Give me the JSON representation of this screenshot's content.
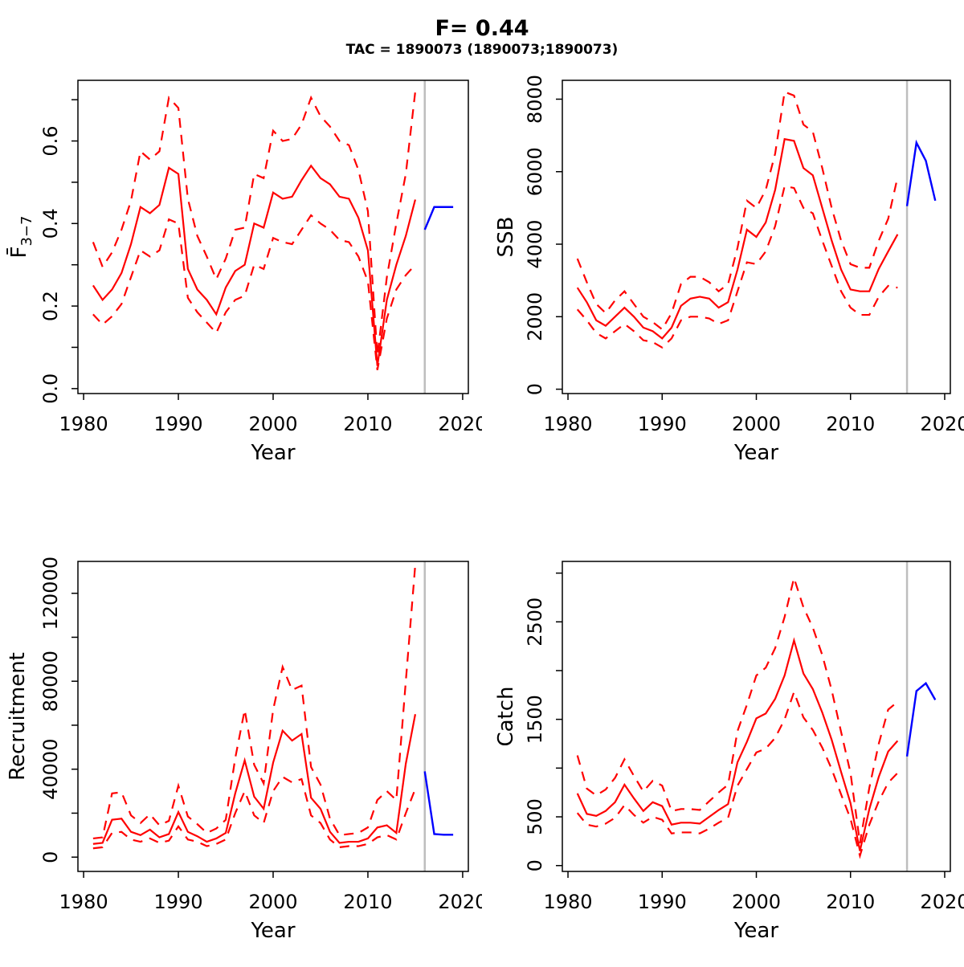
{
  "header": {
    "title": "F= 0.44",
    "subtitle": "TAC = 1890073 (1890073;1890073)"
  },
  "colors": {
    "history": "#FF0000",
    "forecast": "#0000FF",
    "vline": "#BEBEBE",
    "axis": "#000000",
    "background": "#FFFFFF"
  },
  "chart_data": {
    "type": "line",
    "layout": "2x2 grid, R base graphics style, outer box around each panel, y tick labels rotated 90",
    "legend": "none",
    "history_years": [
      1981,
      1982,
      1983,
      1984,
      1985,
      1986,
      1987,
      1988,
      1989,
      1990,
      1991,
      1992,
      1993,
      1994,
      1995,
      1996,
      1997,
      1998,
      1999,
      2000,
      2001,
      2002,
      2003,
      2004,
      2005,
      2006,
      2007,
      2008,
      2009,
      2010,
      2011,
      2012,
      2013,
      2014,
      2015
    ],
    "forecast_years": [
      2016,
      2017,
      2018,
      2019
    ],
    "vline_year": 2016,
    "xlim": [
      1979.4,
      2020.6
    ],
    "xlabel": "Year",
    "x_ticks": [
      {
        "v": 1980,
        "label": "1980"
      },
      {
        "v": 1990,
        "label": "1990"
      },
      {
        "v": 2000,
        "label": "2000"
      },
      {
        "v": 2010,
        "label": "2010"
      },
      {
        "v": 2020,
        "label": "2020"
      }
    ],
    "panels": [
      {
        "key": "fbar",
        "ylabel": "F̄",
        "ylabel_sub": "3−7",
        "ylim": [
          -0.012,
          0.747
        ],
        "y_ticks": [
          {
            "v": 0.0,
            "label": "0.0"
          },
          {
            "v": 0.1,
            "label": ""
          },
          {
            "v": 0.2,
            "label": "0.2"
          },
          {
            "v": 0.3,
            "label": ""
          },
          {
            "v": 0.4,
            "label": "0.4"
          },
          {
            "v": 0.5,
            "label": ""
          },
          {
            "v": 0.6,
            "label": "0.6"
          },
          {
            "v": 0.7,
            "label": ""
          }
        ],
        "median": [
          0.25,
          0.215,
          0.24,
          0.28,
          0.35,
          0.44,
          0.425,
          0.445,
          0.535,
          0.52,
          0.29,
          0.24,
          0.215,
          0.18,
          0.245,
          0.285,
          0.3,
          0.4,
          0.39,
          0.475,
          0.46,
          0.465,
          0.505,
          0.54,
          0.51,
          0.495,
          0.465,
          0.46,
          0.414,
          0.335,
          0.055,
          0.215,
          0.3,
          0.37,
          0.458
        ],
        "upper": [
          0.355,
          0.295,
          0.33,
          0.385,
          0.455,
          0.575,
          0.555,
          0.575,
          0.705,
          0.68,
          0.46,
          0.37,
          0.32,
          0.265,
          0.315,
          0.385,
          0.39,
          0.52,
          0.51,
          0.625,
          0.6,
          0.605,
          0.64,
          0.705,
          0.66,
          0.635,
          0.6,
          0.59,
          0.53,
          0.43,
          0.08,
          0.27,
          0.4,
          0.52,
          0.72
        ],
        "lower": [
          0.18,
          0.155,
          0.175,
          0.205,
          0.27,
          0.335,
          0.32,
          0.335,
          0.41,
          0.4,
          0.22,
          0.185,
          0.16,
          0.135,
          0.185,
          0.215,
          0.225,
          0.3,
          0.29,
          0.365,
          0.355,
          0.35,
          0.385,
          0.42,
          0.4,
          0.385,
          0.36,
          0.355,
          0.32,
          0.26,
          0.045,
          0.17,
          0.24,
          0.275,
          0.3
        ],
        "forecast": [
          0.385,
          0.44,
          0.44,
          0.44
        ]
      },
      {
        "key": "ssb",
        "ylabel": "SSB",
        "ylabel_sub": "",
        "ylim": [
          -120,
          8520
        ],
        "y_ticks": [
          {
            "v": 0,
            "label": "0"
          },
          {
            "v": 2000,
            "label": "2000"
          },
          {
            "v": 4000,
            "label": "4000"
          },
          {
            "v": 6000,
            "label": "6000"
          },
          {
            "v": 8000,
            "label": "8000"
          }
        ],
        "median": [
          2800,
          2400,
          1900,
          1750,
          2000,
          2250,
          2000,
          1700,
          1600,
          1400,
          1700,
          2300,
          2500,
          2550,
          2500,
          2250,
          2400,
          3300,
          4400,
          4200,
          4600,
          5500,
          6900,
          6850,
          6100,
          5900,
          5000,
          4100,
          3300,
          2750,
          2700,
          2700,
          3320,
          3800,
          4270
        ],
        "upper": [
          3600,
          2950,
          2350,
          2100,
          2450,
          2700,
          2350,
          2000,
          1850,
          1650,
          2100,
          2900,
          3100,
          3100,
          2950,
          2700,
          2900,
          3900,
          5200,
          5000,
          5500,
          6500,
          8200,
          8100,
          7300,
          7100,
          6100,
          5000,
          4100,
          3450,
          3350,
          3350,
          4100,
          4700,
          5850
        ],
        "lower": [
          2200,
          1900,
          1550,
          1400,
          1600,
          1800,
          1600,
          1350,
          1300,
          1150,
          1400,
          1900,
          2000,
          2000,
          1950,
          1800,
          1900,
          2700,
          3500,
          3450,
          3800,
          4500,
          5600,
          5550,
          5000,
          4850,
          4100,
          3400,
          2700,
          2250,
          2050,
          2050,
          2550,
          2850,
          2800
        ],
        "forecast": [
          5050,
          6800,
          6300,
          5200
        ]
      },
      {
        "key": "recruitment",
        "ylabel": "Recruitment",
        "ylabel_sub": "",
        "ylim": [
          -6500,
          134500
        ],
        "y_ticks": [
          {
            "v": 0,
            "label": "0"
          },
          {
            "v": 20000,
            "label": ""
          },
          {
            "v": 40000,
            "label": "40000"
          },
          {
            "v": 60000,
            "label": ""
          },
          {
            "v": 80000,
            "label": "80000"
          },
          {
            "v": 100000,
            "label": ""
          },
          {
            "v": 120000,
            "label": "120000"
          }
        ],
        "median": [
          6000,
          6500,
          17000,
          17500,
          11500,
          10000,
          12500,
          9000,
          10500,
          20500,
          11500,
          9500,
          7000,
          8500,
          11000,
          29000,
          44000,
          27500,
          22000,
          43000,
          57500,
          53000,
          56000,
          27000,
          22000,
          11500,
          6500,
          7000,
          7000,
          8500,
          13500,
          14500,
          11000,
          42500,
          65000
        ],
        "upper": [
          8500,
          9000,
          29000,
          29500,
          19000,
          15500,
          19500,
          14500,
          16500,
          32500,
          18500,
          15000,
          11000,
          13000,
          17000,
          45000,
          67000,
          42000,
          33500,
          67000,
          86500,
          76000,
          78000,
          41000,
          33000,
          17500,
          10000,
          10500,
          11000,
          13500,
          26000,
          30000,
          26000,
          80000,
          133000
        ],
        "lower": [
          4000,
          4500,
          11000,
          11500,
          8000,
          7000,
          8500,
          6500,
          7500,
          14000,
          8000,
          7000,
          5000,
          6000,
          8000,
          20000,
          30000,
          19000,
          15500,
          30000,
          36500,
          34000,
          35500,
          19000,
          15500,
          8000,
          4500,
          5000,
          5000,
          6000,
          9000,
          10000,
          8000,
          20000,
          31000
        ],
        "forecast": [
          39000,
          10500,
          10200,
          10200
        ]
      },
      {
        "key": "catch",
        "ylabel": "Catch",
        "ylabel_sub": "",
        "ylim": [
          -60,
          3120
        ],
        "y_ticks": [
          {
            "v": 0,
            "label": "0"
          },
          {
            "v": 500,
            "label": "500"
          },
          {
            "v": 1000,
            "label": ""
          },
          {
            "v": 1500,
            "label": "1500"
          },
          {
            "v": 2000,
            "label": ""
          },
          {
            "v": 2500,
            "label": "2500"
          },
          {
            "v": 3000,
            "label": ""
          }
        ],
        "median": [
          740,
          530,
          510,
          560,
          650,
          830,
          690,
          560,
          650,
          610,
          420,
          440,
          440,
          430,
          500,
          570,
          630,
          1060,
          1270,
          1510,
          1560,
          1710,
          1950,
          2310,
          1970,
          1810,
          1570,
          1290,
          960,
          640,
          150,
          580,
          910,
          1170,
          1280
        ],
        "upper": [
          1130,
          790,
          720,
          780,
          900,
          1090,
          920,
          760,
          870,
          820,
          560,
          580,
          580,
          570,
          660,
          750,
          830,
          1380,
          1650,
          1950,
          2030,
          2230,
          2550,
          2950,
          2650,
          2440,
          2160,
          1800,
          1370,
          950,
          230,
          800,
          1250,
          1600,
          1680
        ],
        "lower": [
          540,
          420,
          400,
          430,
          490,
          620,
          520,
          440,
          500,
          470,
          330,
          340,
          340,
          330,
          380,
          440,
          490,
          820,
          990,
          1160,
          1200,
          1310,
          1500,
          1780,
          1520,
          1390,
          1210,
          990,
          730,
          480,
          100,
          420,
          660,
          850,
          950
        ],
        "forecast": [
          1120,
          1790,
          1870,
          1700
        ]
      }
    ]
  }
}
